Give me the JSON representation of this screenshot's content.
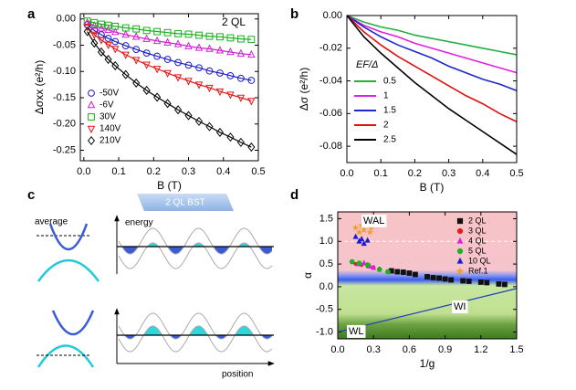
{
  "chart_data": [
    {
      "panel": "a",
      "type": "scatter",
      "annotation": "2 QL",
      "xlabel": "B (T)",
      "ylabel": "Δσxx (e²/h)",
      "x": [
        0.01,
        0.03,
        0.05,
        0.07,
        0.09,
        0.12,
        0.15,
        0.18,
        0.21,
        0.24,
        0.27,
        0.3,
        0.33,
        0.36,
        0.39,
        0.42,
        0.45,
        0.48
      ],
      "xlim": [
        -0.01,
        0.5
      ],
      "ylim": [
        -0.27,
        0.01
      ],
      "xticks": [
        {
          "value": 0,
          "label": "0.0"
        },
        0.1,
        0.2,
        0.3,
        0.4,
        0.5
      ],
      "yticks": [
        {
          "value": 0,
          "label": "0.00"
        },
        {
          "value": -0.05,
          "label": "-0.05"
        },
        {
          "value": -0.1,
          "label": "-0.10"
        },
        {
          "value": -0.15,
          "label": "-0.15"
        },
        {
          "value": -0.2,
          "label": "-0.20"
        },
        {
          "value": -0.25,
          "label": "-0.25"
        }
      ],
      "legend": "lower left",
      "fit_lines": true,
      "filled": false,
      "series": [
        {
          "name": "-50V",
          "color": "#1c1cc8",
          "marker": "circle",
          "values": [
            -0.011,
            -0.022,
            -0.03,
            -0.037,
            -0.043,
            -0.051,
            -0.058,
            -0.065,
            -0.071,
            -0.077,
            -0.083,
            -0.088,
            -0.093,
            -0.099,
            -0.103,
            -0.108,
            -0.113,
            -0.117
          ]
        },
        {
          "name": "-6V",
          "color": "#d020d0",
          "marker": "triangle",
          "values": [
            -0.007,
            -0.013,
            -0.018,
            -0.021,
            -0.025,
            -0.03,
            -0.034,
            -0.038,
            -0.042,
            -0.045,
            -0.048,
            -0.052,
            -0.055,
            -0.057,
            -0.06,
            -0.063,
            -0.066,
            -0.068
          ]
        },
        {
          "name": "30V",
          "color": "#18b018",
          "marker": "square",
          "values": [
            -0.004,
            -0.007,
            -0.01,
            -0.012,
            -0.014,
            -0.017,
            -0.019,
            -0.022,
            -0.024,
            -0.026,
            -0.028,
            -0.029,
            -0.031,
            -0.033,
            -0.034,
            -0.036,
            -0.038,
            -0.039
          ]
        },
        {
          "name": "140V",
          "color": "#e01818",
          "marker": "triangle-down",
          "values": [
            -0.015,
            -0.03,
            -0.04,
            -0.049,
            -0.057,
            -0.068,
            -0.078,
            -0.087,
            -0.095,
            -0.103,
            -0.111,
            -0.118,
            -0.125,
            -0.131,
            -0.138,
            -0.144,
            -0.15,
            -0.156
          ]
        },
        {
          "name": "210V",
          "color": "#000000",
          "marker": "diamond",
          "values": [
            -0.024,
            -0.046,
            -0.063,
            -0.077,
            -0.089,
            -0.106,
            -0.122,
            -0.136,
            -0.149,
            -0.161,
            -0.173,
            -0.184,
            -0.195,
            -0.205,
            -0.216,
            -0.225,
            -0.235,
            -0.244
          ]
        }
      ]
    },
    {
      "panel": "b",
      "type": "line",
      "xlabel": "B (T)",
      "ylabel": "Δσ (e²/h)",
      "legend_title": "EF/Δ",
      "legend": "center left",
      "x": [
        0,
        0.05,
        0.1,
        0.15,
        0.2,
        0.25,
        0.3,
        0.35,
        0.4,
        0.45,
        0.5
      ],
      "xlim": [
        0,
        0.5
      ],
      "ylim": [
        -0.09,
        0
      ],
      "xticks": [
        {
          "value": 0,
          "label": "0.0"
        },
        0.1,
        0.2,
        0.3,
        0.4,
        0.5
      ],
      "yticks": [
        {
          "value": 0,
          "label": "0.00"
        },
        {
          "value": -0.02,
          "label": "-0.02"
        },
        {
          "value": -0.04,
          "label": "-0.04"
        },
        {
          "value": -0.06,
          "label": "-0.06"
        },
        {
          "value": -0.08,
          "label": "-0.08"
        }
      ],
      "series": [
        {
          "name": "0.5",
          "color": "#20b040",
          "values": [
            0,
            -0.004,
            -0.007,
            -0.009,
            -0.012,
            -0.014,
            -0.016,
            -0.018,
            -0.02,
            -0.022,
            -0.024
          ]
        },
        {
          "name": "1",
          "color": "#e020e0",
          "values": [
            0,
            -0.006,
            -0.01,
            -0.013,
            -0.017,
            -0.02,
            -0.023,
            -0.026,
            -0.029,
            -0.032,
            -0.035
          ]
        },
        {
          "name": "1.5",
          "color": "#1e28c8",
          "values": [
            0,
            -0.007,
            -0.013,
            -0.018,
            -0.022,
            -0.026,
            -0.031,
            -0.035,
            -0.039,
            -0.042,
            -0.046
          ]
        },
        {
          "name": "2",
          "color": "#e01010",
          "values": [
            0,
            -0.01,
            -0.018,
            -0.025,
            -0.031,
            -0.037,
            -0.043,
            -0.049,
            -0.054,
            -0.06,
            -0.065
          ]
        },
        {
          "name": "2.5",
          "color": "#000000",
          "values": [
            0,
            -0.013,
            -0.023,
            -0.032,
            -0.041,
            -0.049,
            -0.057,
            -0.064,
            -0.071,
            -0.078,
            -0.085
          ]
        }
      ]
    },
    {
      "panel": "d",
      "type": "scatter",
      "xlabel": "1/g",
      "ylabel": "α",
      "annotations": [
        "WAL",
        "WI",
        "WL"
      ],
      "background": "regimes",
      "reference_line": 1.0,
      "legend": "upper right",
      "filled": true,
      "xlim": [
        0,
        1.5
      ],
      "ylim": [
        -1.15,
        1.65
      ],
      "xticks": [
        {
          "value": 0,
          "label": "0.0"
        },
        0.3,
        0.6,
        0.9,
        1.2,
        1.5
      ],
      "yticks": [
        {
          "value": -1,
          "label": "-1.0"
        },
        -0.5,
        {
          "value": 0,
          "label": "0.0"
        },
        0.5,
        {
          "value": 1,
          "label": "1.0"
        },
        1.5
      ],
      "theory_line": {
        "x": [
          0,
          1.5
        ],
        "values": [
          -1.0,
          -0.04
        ]
      },
      "series": [
        {
          "name": "2 QL",
          "color": "#111111",
          "marker": "square",
          "x": [
            0.45,
            0.5,
            0.55,
            0.6,
            0.65,
            0.75,
            0.8,
            0.85,
            0.9,
            0.95,
            1.05,
            1.1,
            1.2,
            1.25,
            1.35,
            1.4
          ],
          "values": [
            0.35,
            0.33,
            0.32,
            0.3,
            0.27,
            0.22,
            0.2,
            0.19,
            0.17,
            0.15,
            0.13,
            0.12,
            0.1,
            0.09,
            0.06,
            0.05
          ]
        },
        {
          "name": "3 QL",
          "color": "#e02020",
          "marker": "half-circle",
          "x": [
            0.15,
            0.2,
            0.25,
            0.3,
            0.35
          ],
          "values": [
            0.5,
            0.48,
            0.45,
            0.43,
            0.4
          ]
        },
        {
          "name": "4 QL",
          "color": "#e020e0",
          "marker": "triangle",
          "x": [
            0.17,
            0.22,
            0.27,
            0.3
          ],
          "values": [
            0.5,
            0.52,
            0.45,
            0.42
          ]
        },
        {
          "name": "5 QL",
          "color": "#20b020",
          "marker": "circle",
          "x": [
            0.12,
            0.18,
            0.25,
            0.35,
            0.42
          ],
          "values": [
            0.55,
            0.52,
            0.48,
            0.38,
            0.33
          ]
        },
        {
          "name": "10 QL",
          "color": "#1a1ad0",
          "marker": "triangle",
          "x": [
            0.15,
            0.18,
            0.2,
            0.22,
            0.25
          ],
          "values": [
            1.1,
            1.0,
            1.05,
            0.95,
            1.02
          ]
        },
        {
          "name": "Ref.1",
          "color": "#f0a020",
          "marker": "star",
          "x": [
            0.15,
            0.18,
            0.2,
            0.22,
            0.25,
            0.28,
            0.3,
            0.32,
            0.27,
            0.35
          ],
          "values": [
            1.3,
            1.2,
            1.35,
            1.25,
            1.4,
            1.3,
            1.45,
            1.35,
            1.2,
            1.45
          ]
        }
      ]
    }
  ],
  "diagram": {
    "panel": "c",
    "badge": "2 QL BST",
    "labels": [
      "average",
      "energy",
      "position"
    ]
  }
}
